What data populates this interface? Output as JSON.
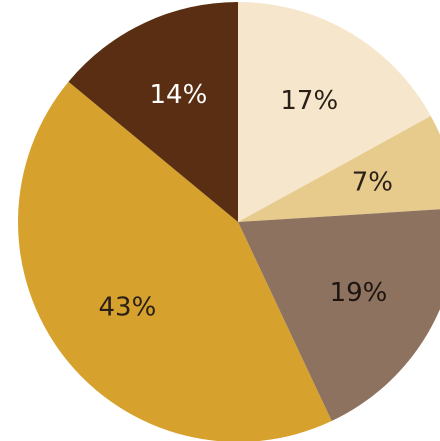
{
  "chart_data": {
    "type": "pie",
    "slices": [
      {
        "value": 17,
        "label": "17%",
        "color": "#F5E6CC",
        "text_color": "#2A2018"
      },
      {
        "value": 7,
        "label": "7%",
        "color": "#E7CB8C",
        "text_color": "#2A2018"
      },
      {
        "value": 19,
        "label": "19%",
        "color": "#8E7260",
        "text_color": "#1E1510"
      },
      {
        "value": 43,
        "label": "43%",
        "color": "#D6A22D",
        "text_color": "#2A2018"
      },
      {
        "value": 14,
        "label": "14%",
        "color": "#5A2E12",
        "text_color": "#FFFFFF"
      }
    ],
    "start_angle_deg": 0,
    "direction": "clockwise",
    "legend": "none",
    "title": ""
  }
}
